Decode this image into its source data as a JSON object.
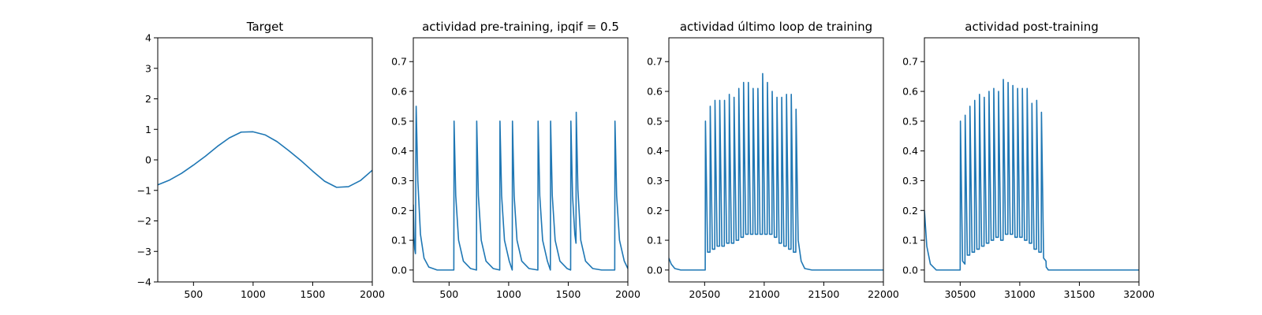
{
  "colors": {
    "line": "#1f77b4",
    "axes": "#000000",
    "background": "#ffffff"
  },
  "chart_data": [
    {
      "type": "line",
      "title": "Target",
      "xlabel": "",
      "ylabel": "",
      "xlim": [
        200,
        2000
      ],
      "ylim": [
        -4,
        4
      ],
      "xticks": [
        500,
        1000,
        1500,
        2000
      ],
      "yticks": [
        -4,
        -3,
        -2,
        -1,
        0,
        1,
        2,
        3,
        4
      ],
      "grid": false,
      "series": [
        {
          "x": [
            200,
            300,
            400,
            500,
            600,
            700,
            800,
            900,
            1000,
            1100,
            1200,
            1300,
            1400,
            1500,
            1600,
            1700,
            1800,
            1900,
            2000
          ],
          "values": [
            -0.82,
            -0.66,
            -0.44,
            -0.17,
            0.12,
            0.44,
            0.72,
            0.91,
            0.92,
            0.82,
            0.6,
            0.3,
            -0.02,
            -0.37,
            -0.7,
            -0.9,
            -0.88,
            -0.68,
            -0.34
          ]
        }
      ]
    },
    {
      "type": "line",
      "title": "actividad pre-training, ipqif = 0.5",
      "xlabel": "",
      "ylabel": "",
      "xlim": [
        200,
        2000
      ],
      "ylim": [
        -0.04,
        0.78
      ],
      "xticks": [
        500,
        1000,
        1500,
        2000
      ],
      "yticks": [
        0.0,
        0.1,
        0.2,
        0.3,
        0.4,
        0.5,
        0.6,
        0.7
      ],
      "grid": false,
      "series": [
        {
          "x": [
            200,
            206,
            212,
            218,
            222,
            224,
            238,
            260,
            290,
            330,
            400,
            480,
            540,
            542,
            556,
            580,
            620,
            680,
            730,
            732,
            746,
            770,
            810,
            870,
            925,
            927,
            941,
            965,
            1005,
            1030,
            1032,
            1046,
            1070,
            1110,
            1170,
            1245,
            1247,
            1261,
            1285,
            1325,
            1350,
            1352,
            1366,
            1390,
            1430,
            1490,
            1520,
            1522,
            1536,
            1555,
            1565,
            1567,
            1581,
            1605,
            1645,
            1705,
            1780,
            1890,
            1892,
            1906,
            1930,
            1970,
            2000
          ],
          "values": [
            0.22,
            0.11,
            0.07,
            0.055,
            0.45,
            0.55,
            0.3,
            0.12,
            0.04,
            0.01,
            0.0,
            0.0,
            0.0,
            0.5,
            0.25,
            0.1,
            0.03,
            0.005,
            0.0,
            0.5,
            0.25,
            0.1,
            0.03,
            0.005,
            0.0,
            0.5,
            0.25,
            0.1,
            0.03,
            0.0,
            0.5,
            0.25,
            0.1,
            0.03,
            0.005,
            0.0,
            0.5,
            0.25,
            0.1,
            0.03,
            0.0,
            0.5,
            0.25,
            0.1,
            0.03,
            0.005,
            0.0,
            0.5,
            0.25,
            0.12,
            0.09,
            0.53,
            0.27,
            0.1,
            0.03,
            0.005,
            0.0,
            0.0,
            0.5,
            0.25,
            0.1,
            0.03,
            0.005
          ]
        }
      ]
    },
    {
      "type": "line",
      "title": "actividad último loop de training",
      "xlabel": "",
      "ylabel": "",
      "xlim": [
        20200,
        22000
      ],
      "ylim": [
        -0.04,
        0.78
      ],
      "xticks": [
        20500,
        21000,
        21500,
        22000
      ],
      "yticks": [
        0.0,
        0.1,
        0.2,
        0.3,
        0.4,
        0.5,
        0.6,
        0.7
      ],
      "grid": false,
      "series": [
        {
          "x": [
            20200,
            20220,
            20250,
            20300,
            20400,
            20505,
            20507,
            20525,
            20545,
            20547,
            20565,
            20585,
            20587,
            20605,
            20625,
            20627,
            20645,
            20665,
            20667,
            20685,
            20705,
            20707,
            20725,
            20745,
            20747,
            20765,
            20785,
            20787,
            20805,
            20825,
            20827,
            20845,
            20865,
            20867,
            20885,
            20905,
            20907,
            20925,
            20945,
            20947,
            20965,
            20985,
            20987,
            21005,
            21025,
            21027,
            21045,
            21065,
            21067,
            21085,
            21105,
            21107,
            21125,
            21145,
            21147,
            21165,
            21185,
            21187,
            21205,
            21225,
            21227,
            21245,
            21265,
            21267,
            21285,
            21310,
            21340,
            21400,
            21500,
            22000
          ],
          "values": [
            0.04,
            0.02,
            0.005,
            0.0,
            0.0,
            0.0,
            0.5,
            0.06,
            0.06,
            0.55,
            0.07,
            0.07,
            0.57,
            0.08,
            0.08,
            0.57,
            0.08,
            0.08,
            0.57,
            0.09,
            0.09,
            0.59,
            0.09,
            0.09,
            0.58,
            0.1,
            0.1,
            0.61,
            0.11,
            0.11,
            0.63,
            0.12,
            0.12,
            0.63,
            0.12,
            0.12,
            0.61,
            0.12,
            0.12,
            0.61,
            0.12,
            0.12,
            0.66,
            0.12,
            0.12,
            0.63,
            0.12,
            0.12,
            0.6,
            0.11,
            0.11,
            0.58,
            0.09,
            0.09,
            0.58,
            0.08,
            0.08,
            0.59,
            0.07,
            0.07,
            0.59,
            0.06,
            0.06,
            0.54,
            0.1,
            0.03,
            0.005,
            0.0,
            0.0,
            0.0
          ]
        }
      ]
    },
    {
      "type": "line",
      "title": "actividad post-training",
      "xlabel": "",
      "ylabel": "",
      "xlim": [
        30200,
        32000
      ],
      "ylim": [
        -0.04,
        0.78
      ],
      "xticks": [
        30500,
        31000,
        31500,
        32000
      ],
      "yticks": [
        0.0,
        0.1,
        0.2,
        0.3,
        0.4,
        0.5,
        0.6,
        0.7
      ],
      "grid": false,
      "series": [
        {
          "x": [
            30200,
            30220,
            30250,
            30300,
            30400,
            30500,
            30502,
            30520,
            30540,
            30542,
            30560,
            30580,
            30582,
            30600,
            30620,
            30622,
            30640,
            30660,
            30662,
            30680,
            30700,
            30702,
            30720,
            30740,
            30742,
            30760,
            30780,
            30782,
            30800,
            30820,
            30822,
            30840,
            30860,
            30862,
            30880,
            30900,
            30902,
            30920,
            30940,
            30942,
            30960,
            30980,
            30982,
            31000,
            31020,
            31022,
            31040,
            31060,
            31062,
            31080,
            31100,
            31102,
            31120,
            31140,
            31142,
            31160,
            31180,
            31182,
            31200,
            31220,
            31222,
            31240,
            31260,
            31290,
            31320,
            31400,
            31500,
            32000
          ],
          "values": [
            0.2,
            0.08,
            0.02,
            0.0,
            0.0,
            0.0,
            0.5,
            0.03,
            0.02,
            0.52,
            0.05,
            0.05,
            0.55,
            0.06,
            0.06,
            0.57,
            0.07,
            0.07,
            0.59,
            0.08,
            0.08,
            0.58,
            0.09,
            0.09,
            0.6,
            0.1,
            0.1,
            0.61,
            0.11,
            0.11,
            0.6,
            0.1,
            0.1,
            0.64,
            0.12,
            0.12,
            0.63,
            0.12,
            0.12,
            0.62,
            0.11,
            0.11,
            0.61,
            0.11,
            0.11,
            0.61,
            0.1,
            0.1,
            0.61,
            0.09,
            0.09,
            0.56,
            0.07,
            0.07,
            0.57,
            0.06,
            0.06,
            0.53,
            0.04,
            0.03,
            0.01,
            0.0,
            0.0,
            0.0,
            0.0,
            0.0,
            0.0,
            0.0
          ]
        }
      ]
    }
  ]
}
